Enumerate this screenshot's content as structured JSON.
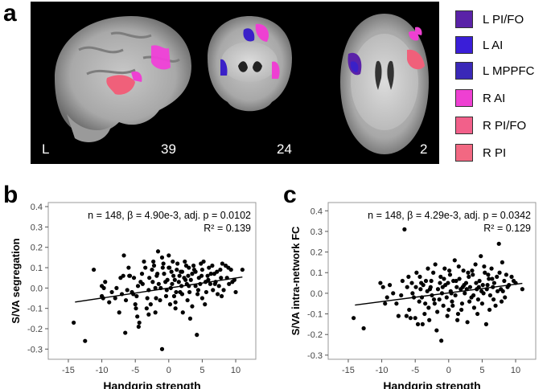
{
  "panels": {
    "a": {
      "letter": "a",
      "orientation_label": "L",
      "slice_labels": [
        "39",
        "24",
        "2"
      ],
      "legend": [
        {
          "label": "L PI/FO",
          "color": "#5a22a8"
        },
        {
          "label": "L AI",
          "color": "#3a1ed8"
        },
        {
          "label": "L MPPFC",
          "color": "#3a28b8"
        },
        {
          "label": "R AI",
          "color": "#ee40d2"
        },
        {
          "label": "R PI/FO",
          "color": "#f2608a"
        },
        {
          "label": "R PI",
          "color": "#f26882"
        }
      ]
    },
    "b": {
      "letter": "b"
    },
    "c": {
      "letter": "c"
    }
  },
  "chart_data": [
    {
      "type": "scatter",
      "panel": "b",
      "xlabel": "Handgrip strength",
      "ylabel": "S/VA segregation",
      "xlim": [
        -18,
        13
      ],
      "ylim": [
        -0.35,
        0.42
      ],
      "xticks": [
        -15,
        -10,
        -5,
        0,
        5,
        10
      ],
      "yticks": [
        -0.3,
        -0.2,
        -0.1,
        0.0,
        0.1,
        0.2,
        0.3,
        0.4
      ],
      "ytick_labels": [
        "-0.3",
        "-0.2",
        "-0.1",
        "0.0",
        "0.1",
        "0.2",
        "0.3",
        "0.4"
      ],
      "annotation_line1": "n = 148, β = 4.90e-3, adj. p = 0.0102",
      "annotation_line2": "R² = 0.139",
      "regression": {
        "x": [
          -14,
          11
        ],
        "y": [
          -0.069,
          0.054
        ]
      },
      "points": [
        [
          -14.2,
          -0.17
        ],
        [
          -12.5,
          -0.26
        ],
        [
          -11.2,
          0.09
        ],
        [
          -10.0,
          0.01
        ],
        [
          -10.0,
          -0.04
        ],
        [
          -9.8,
          -0.05
        ],
        [
          -9.7,
          0.0
        ],
        [
          -8.5,
          -0.02
        ],
        [
          -8.0,
          -0.05
        ],
        [
          -7.8,
          0.0
        ],
        [
          -7.4,
          -0.12
        ],
        [
          -7.0,
          -0.03
        ],
        [
          -6.8,
          0.06
        ],
        [
          -6.7,
          0.16
        ],
        [
          -6.5,
          -0.22
        ],
        [
          -6.0,
          0.1
        ],
        [
          -5.9,
          0.06
        ],
        [
          -5.8,
          0.06
        ],
        [
          -5.5,
          -0.02
        ],
        [
          -5.3,
          -0.03
        ],
        [
          -5.0,
          -0.08
        ],
        [
          -4.9,
          -0.1
        ],
        [
          -4.8,
          -0.04
        ],
        [
          -4.7,
          -0.14
        ],
        [
          -4.5,
          -0.19
        ],
        [
          -4.4,
          -0.17
        ],
        [
          -4.2,
          0.03
        ],
        [
          -4.0,
          0.07
        ],
        [
          -3.9,
          0.02
        ],
        [
          -3.5,
          0.1
        ],
        [
          -3.2,
          -0.05
        ],
        [
          -3.0,
          -0.13
        ],
        [
          -3.0,
          -0.01
        ],
        [
          -2.9,
          0.05
        ],
        [
          -2.5,
          0.09
        ],
        [
          -2.4,
          0.03
        ],
        [
          -2.3,
          0.13
        ],
        [
          -2.0,
          0.0
        ],
        [
          -2.0,
          -0.12
        ],
        [
          -1.9,
          -0.05
        ],
        [
          -1.8,
          0.06
        ],
        [
          -1.7,
          0.07
        ],
        [
          -1.5,
          0.02
        ],
        [
          -1.3,
          -0.06
        ],
        [
          -1.0,
          0.15
        ],
        [
          -1.0,
          -0.3
        ],
        [
          -0.9,
          0.1
        ],
        [
          -0.8,
          0.12
        ],
        [
          -0.7,
          0.07
        ],
        [
          -0.5,
          0.03
        ],
        [
          -0.3,
          -0.01
        ],
        [
          -0.2,
          0.04
        ],
        [
          0.0,
          0.1
        ],
        [
          0.0,
          0.16
        ],
        [
          0.1,
          0.1
        ],
        [
          0.2,
          -0.08
        ],
        [
          0.3,
          0.0
        ],
        [
          0.5,
          0.02
        ],
        [
          0.7,
          0.06
        ],
        [
          0.9,
          0.04
        ],
        [
          1.0,
          -0.07
        ],
        [
          1.0,
          -0.1
        ],
        [
          1.2,
          0.09
        ],
        [
          1.3,
          0.12
        ],
        [
          1.5,
          0.03
        ],
        [
          1.7,
          -0.02
        ],
        [
          1.8,
          0.08
        ],
        [
          2.0,
          0.08
        ],
        [
          2.0,
          -0.03
        ],
        [
          2.1,
          -0.12
        ],
        [
          2.3,
          0.05
        ],
        [
          2.5,
          0.04
        ],
        [
          2.6,
          0.11
        ],
        [
          2.8,
          -0.06
        ],
        [
          3.0,
          0.01
        ],
        [
          3.0,
          0.1
        ],
        [
          3.1,
          -0.02
        ],
        [
          3.2,
          -0.15
        ],
        [
          3.5,
          0.07
        ],
        [
          3.5,
          -0.09
        ],
        [
          3.7,
          0.11
        ],
        [
          4.0,
          0.01
        ],
        [
          4.0,
          0.08
        ],
        [
          4.2,
          -0.23
        ],
        [
          4.3,
          -0.03
        ],
        [
          4.5,
          0.05
        ],
        [
          4.7,
          0.02
        ],
        [
          5.0,
          0.09
        ],
        [
          5.0,
          -0.05
        ],
        [
          5.2,
          0.13
        ],
        [
          5.5,
          0.03
        ],
        [
          5.6,
          -0.02
        ],
        [
          5.8,
          0.06
        ],
        [
          6.0,
          0.1
        ],
        [
          6.2,
          0.02
        ],
        [
          6.5,
          0.11
        ],
        [
          6.6,
          -0.01
        ],
        [
          6.8,
          0.07
        ],
        [
          7.0,
          0.03
        ],
        [
          7.2,
          0.08
        ],
        [
          7.3,
          -0.03
        ],
        [
          7.5,
          0.01
        ],
        [
          7.8,
          0.05
        ],
        [
          8.0,
          0.12
        ],
        [
          8.2,
          -0.01
        ],
        [
          8.5,
          0.11
        ],
        [
          8.7,
          0.05
        ],
        [
          9.0,
          0.02
        ],
        [
          9.3,
          0.09
        ],
        [
          9.5,
          0.03
        ],
        [
          10.0,
          -0.02
        ],
        [
          11.0,
          0.09
        ],
        [
          -8.9,
          -0.07
        ],
        [
          -6.2,
          -0.01
        ],
        [
          -3.7,
          0.13
        ],
        [
          -2.7,
          -0.08
        ],
        [
          -1.2,
          0.0
        ],
        [
          0.6,
          0.13
        ],
        [
          1.6,
          0.06
        ],
        [
          2.4,
          0.13
        ],
        [
          3.3,
          0.04
        ],
        [
          4.8,
          0.12
        ],
        [
          5.4,
          -0.08
        ],
        [
          6.3,
          0.07
        ],
        [
          7.7,
          0.09
        ],
        [
          -5.2,
          0.05
        ],
        [
          -0.4,
          -0.04
        ],
        [
          1.1,
          -0.02
        ],
        [
          2.9,
          0.06
        ],
        [
          4.4,
          -0.01
        ],
        [
          6.9,
          0.02
        ],
        [
          8.9,
          0.1
        ],
        [
          -7.2,
          0.05
        ],
        [
          -4.6,
          0.01
        ],
        [
          -2.2,
          0.11
        ],
        [
          0.4,
          0.08
        ],
        [
          3.8,
          0.09
        ],
        [
          5.9,
          0.04
        ],
        [
          -9.5,
          0.03
        ],
        [
          -3.3,
          -0.1
        ],
        [
          1.9,
          0.01
        ],
        [
          7.9,
          -0.04
        ],
        [
          -1.6,
          0.18
        ],
        [
          0.8,
          -0.04
        ],
        [
          9.8,
          0.04
        ],
        [
          -6.4,
          -0.06
        ],
        [
          2.7,
          0.02
        ],
        [
          4.9,
          0.06
        ]
      ]
    },
    {
      "type": "scatter",
      "panel": "c",
      "xlabel": "Handgrip strength",
      "ylabel": "S/VA intra-network FC",
      "xlim": [
        -18,
        13
      ],
      "ylim": [
        -0.32,
        0.44
      ],
      "xticks": [
        -15,
        -10,
        -5,
        0,
        5,
        10
      ],
      "yticks": [
        -0.3,
        -0.2,
        -0.1,
        0.0,
        0.1,
        0.2,
        0.3,
        0.4
      ],
      "ytick_labels": [
        "-0.3",
        "-0.2",
        "-0.1",
        "0.0",
        "0.1",
        "0.2",
        "0.3",
        "0.4"
      ],
      "annotation_line1": "n = 148, β = 4.29e-3, adj. p = 0.0342",
      "annotation_line2": "R² = 0.129",
      "regression": {
        "x": [
          -14,
          11
        ],
        "y": [
          -0.057,
          0.048
        ]
      },
      "points": [
        [
          -14.2,
          -0.12
        ],
        [
          -12.7,
          -0.17
        ],
        [
          -10.2,
          0.05
        ],
        [
          -9.8,
          0.03
        ],
        [
          -9.5,
          -0.05
        ],
        [
          -8.3,
          0.0
        ],
        [
          -7.8,
          -0.05
        ],
        [
          -7.5,
          -0.11
        ],
        [
          -6.6,
          0.31
        ],
        [
          -6.2,
          0.03
        ],
        [
          -6.0,
          0.08
        ],
        [
          -5.7,
          -0.12
        ],
        [
          -5.5,
          0.05
        ],
        [
          -5.2,
          -0.02
        ],
        [
          -5.0,
          -0.12
        ],
        [
          -4.8,
          0.1
        ],
        [
          -4.6,
          -0.15
        ],
        [
          -4.4,
          -0.04
        ],
        [
          -4.2,
          0.02
        ],
        [
          -4.0,
          -0.02
        ],
        [
          -3.8,
          0.04
        ],
        [
          -3.6,
          -0.1
        ],
        [
          -3.4,
          0.06
        ],
        [
          -3.2,
          0.01
        ],
        [
          -3.0,
          -0.07
        ],
        [
          -2.9,
          -0.13
        ],
        [
          -2.7,
          0.03
        ],
        [
          -2.5,
          -0.01
        ],
        [
          -2.3,
          0.1
        ],
        [
          -2.1,
          -0.05
        ],
        [
          -2.0,
          0.14
        ],
        [
          -1.8,
          -0.18
        ],
        [
          -1.6,
          0.02
        ],
        [
          -1.4,
          -0.03
        ],
        [
          -1.2,
          0.08
        ],
        [
          -1.1,
          -0.23
        ],
        [
          -1.0,
          0.0
        ],
        [
          -0.8,
          -0.06
        ],
        [
          -0.6,
          0.12
        ],
        [
          -0.5,
          0.04
        ],
        [
          -0.3,
          -0.02
        ],
        [
          -0.1,
          0.05
        ],
        [
          0.0,
          -0.08
        ],
        [
          0.2,
          0.09
        ],
        [
          0.3,
          0.01
        ],
        [
          0.5,
          -0.04
        ],
        [
          0.7,
          0.06
        ],
        [
          0.9,
          0.16
        ],
        [
          1.0,
          -0.01
        ],
        [
          1.2,
          0.03
        ],
        [
          1.4,
          -0.1
        ],
        [
          1.6,
          0.07
        ],
        [
          1.8,
          0.02
        ],
        [
          2.0,
          -0.05
        ],
        [
          2.2,
          0.11
        ],
        [
          2.4,
          0.0
        ],
        [
          2.6,
          0.05
        ],
        [
          2.8,
          -0.14
        ],
        [
          3.0,
          0.08
        ],
        [
          3.2,
          0.03
        ],
        [
          3.4,
          -0.02
        ],
        [
          3.6,
          0.09
        ],
        [
          3.8,
          -0.07
        ],
        [
          4.0,
          0.14
        ],
        [
          4.2,
          0.02
        ],
        [
          4.4,
          -0.03
        ],
        [
          4.6,
          0.06
        ],
        [
          4.8,
          0.18
        ],
        [
          5.0,
          -0.05
        ],
        [
          5.2,
          0.0
        ],
        [
          5.4,
          0.1
        ],
        [
          5.6,
          -0.15
        ],
        [
          5.8,
          0.04
        ],
        [
          6.0,
          0.07
        ],
        [
          6.2,
          -0.01
        ],
        [
          6.4,
          0.12
        ],
        [
          6.6,
          0.03
        ],
        [
          6.8,
          0.05
        ],
        [
          7.0,
          -0.06
        ],
        [
          7.2,
          0.08
        ],
        [
          7.5,
          0.24
        ],
        [
          7.8,
          0.02
        ],
        [
          8.0,
          0.15
        ],
        [
          8.3,
          0.06
        ],
        [
          8.6,
          0.09
        ],
        [
          9.0,
          0.04
        ],
        [
          9.4,
          0.08
        ],
        [
          10.0,
          0.05
        ],
        [
          11.0,
          0.02
        ],
        [
          -8.8,
          0.04
        ],
        [
          -6.9,
          0.06
        ],
        [
          -5.9,
          -0.08
        ],
        [
          -4.3,
          0.08
        ],
        [
          -3.5,
          -0.05
        ],
        [
          -2.6,
          0.06
        ],
        [
          -1.7,
          -0.09
        ],
        [
          -0.9,
          0.03
        ],
        [
          0.1,
          0.11
        ],
        [
          1.1,
          0.06
        ],
        [
          1.9,
          -0.08
        ],
        [
          2.7,
          0.02
        ],
        [
          3.5,
          0.11
        ],
        [
          4.3,
          -0.1
        ],
        [
          5.1,
          0.04
        ],
        [
          5.9,
          0.09
        ],
        [
          6.7,
          -0.03
        ],
        [
          7.6,
          0.1
        ],
        [
          8.4,
          -0.02
        ],
        [
          -7.1,
          -0.01
        ],
        [
          -4.9,
          0.03
        ],
        [
          -2.2,
          -0.03
        ],
        [
          -0.2,
          -0.11
        ],
        [
          1.5,
          0.13
        ],
        [
          3.1,
          -0.04
        ],
        [
          4.9,
          0.01
        ],
        [
          6.5,
          0.07
        ],
        [
          8.8,
          0.03
        ],
        [
          -5.4,
          0.0
        ],
        [
          -1.3,
          0.05
        ],
        [
          2.3,
          0.04
        ],
        [
          4.1,
          0.05
        ],
        [
          7.3,
          0.01
        ],
        [
          -3.9,
          -0.15
        ],
        [
          0.6,
          -0.06
        ],
        [
          2.9,
          0.1
        ],
        [
          5.7,
          0.02
        ],
        [
          9.7,
          0.06
        ],
        [
          -6.3,
          -0.11
        ],
        [
          -2.8,
          0.02
        ],
        [
          0.4,
          0.0
        ],
        [
          3.7,
          -0.01
        ],
        [
          6.1,
          -0.08
        ],
        [
          -9.2,
          -0.02
        ],
        [
          -3.1,
          0.12
        ],
        [
          1.3,
          -0.13
        ],
        [
          4.5,
          0.03
        ],
        [
          7.9,
          -0.04
        ],
        [
          -0.7,
          0.07
        ],
        [
          2.1,
          0.03
        ],
        [
          5.3,
          0.13
        ],
        [
          8.1,
          0.01
        ],
        [
          -4.1,
          0.05
        ]
      ]
    }
  ]
}
